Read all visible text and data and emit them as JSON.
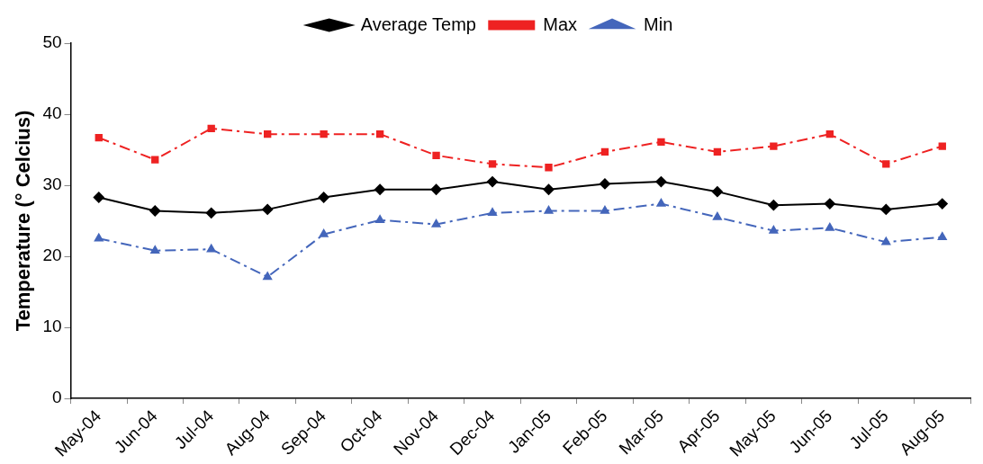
{
  "chart_data": {
    "type": "line",
    "ylabel": "Temperature (° Celcius)",
    "categories": [
      "May-04",
      "Jun-04",
      "Jul-04",
      "Aug-04",
      "Sep-04",
      "Oct-04",
      "Nov-04",
      "Dec-04",
      "Jan-05",
      "Feb-05",
      "Mar-05",
      "Apr-05",
      "May-05",
      "Jun-05",
      "Jul-05",
      "Aug-05"
    ],
    "series": [
      {
        "name": "Average Temp",
        "color": "#000000",
        "marker": "diamond",
        "line_style": "solid",
        "values": [
          28.3,
          26.4,
          26.1,
          26.6,
          28.3,
          29.4,
          29.4,
          30.5,
          29.4,
          30.2,
          30.5,
          29.1,
          27.2,
          27.4,
          26.6,
          27.4
        ]
      },
      {
        "name": "Max",
        "color": "#ee2222",
        "marker": "square",
        "line_style": "dashed",
        "values": [
          36.7,
          33.6,
          38.0,
          37.2,
          37.2,
          37.2,
          34.2,
          33.0,
          32.5,
          34.7,
          36.1,
          34.7,
          35.5,
          37.2,
          33.0,
          35.5
        ]
      },
      {
        "name": "Min",
        "color": "#4466bb",
        "marker": "triangle",
        "line_style": "dashed",
        "values": [
          22.5,
          20.8,
          21.0,
          17.1,
          23.1,
          25.1,
          24.5,
          26.1,
          26.4,
          26.4,
          27.4,
          25.5,
          23.6,
          24.0,
          22.0,
          22.7
        ]
      }
    ],
    "ylim": [
      0,
      50
    ],
    "yticks": [
      0,
      10,
      20,
      30,
      40,
      50
    ],
    "grid": false,
    "legend": "top"
  }
}
